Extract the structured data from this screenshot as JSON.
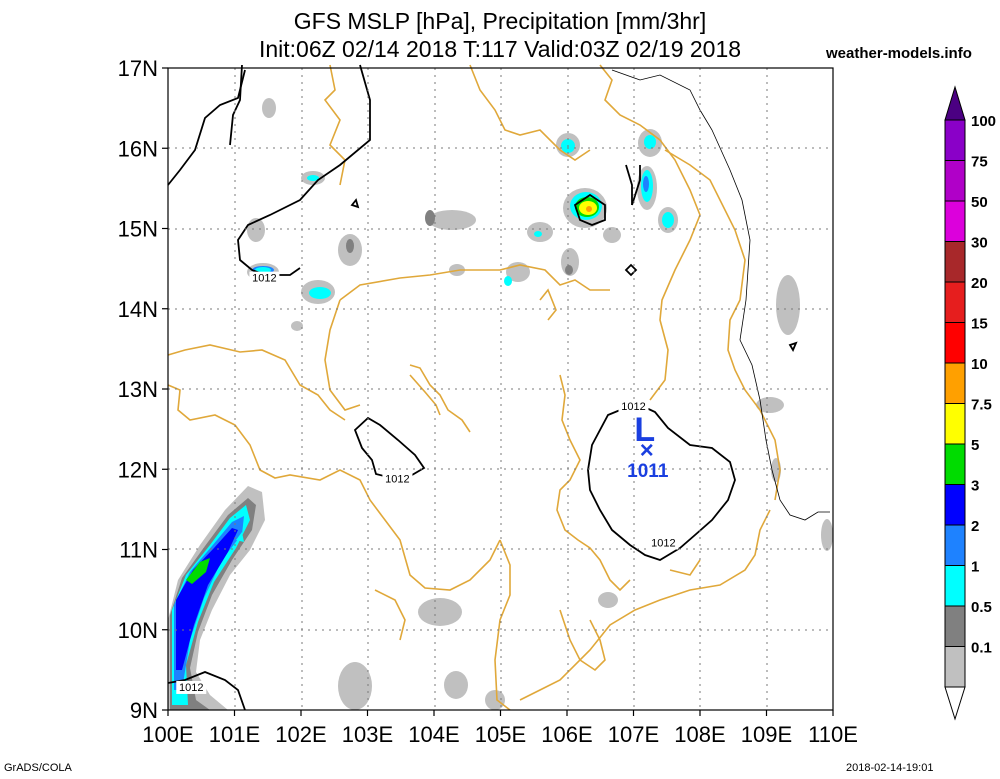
{
  "title": {
    "line1": "GFS MSLP [hPa], Precipitation [mm/3hr]",
    "line2": "Init:06Z 02/14 2018 T:117 Valid:03Z 02/19 2018"
  },
  "site": "weather-models.info",
  "footer": {
    "left": "GrADS/COLA",
    "right": "2018-02-14-19:01"
  },
  "map": {
    "lon_range": [
      100,
      110
    ],
    "lat_range": [
      9,
      17
    ],
    "lon_ticks": [
      {
        "v": 100,
        "label": "100E"
      },
      {
        "v": 101,
        "label": "101E"
      },
      {
        "v": 102,
        "label": "102E"
      },
      {
        "v": 103,
        "label": "103E"
      },
      {
        "v": 104,
        "label": "104E"
      },
      {
        "v": 105,
        "label": "105E"
      },
      {
        "v": 106,
        "label": "106E"
      },
      {
        "v": 107,
        "label": "107E"
      },
      {
        "v": 108,
        "label": "108E"
      },
      {
        "v": 109,
        "label": "109E"
      },
      {
        "v": 110,
        "label": "110E"
      }
    ],
    "lat_ticks": [
      {
        "v": 9,
        "label": "9N"
      },
      {
        "v": 10,
        "label": "10N"
      },
      {
        "v": 11,
        "label": "11N"
      },
      {
        "v": 12,
        "label": "12N"
      },
      {
        "v": 13,
        "label": "13N"
      },
      {
        "v": 14,
        "label": "14N"
      },
      {
        "v": 15,
        "label": "15N"
      },
      {
        "v": 16,
        "label": "16N"
      },
      {
        "v": 17,
        "label": "17N"
      }
    ],
    "grid": true,
    "colors": {
      "coast": "#e0a83a",
      "isobar": "#000000",
      "low": "#1a3fe0"
    }
  },
  "low": {
    "symbol": "L",
    "marker": "×",
    "pressure": "1011",
    "lon": 107.2,
    "lat": 12.25
  },
  "isobar_labels": [
    {
      "text": "1012",
      "lon": 101.45,
      "lat": 14.35
    },
    {
      "text": "1012",
      "lon": 103.45,
      "lat": 11.85
    },
    {
      "text": "1012",
      "lon": 107.0,
      "lat": 12.75
    },
    {
      "text": "1012",
      "lon": 107.45,
      "lat": 11.05
    },
    {
      "text": "1012",
      "lon": 100.35,
      "lat": 9.25
    }
  ],
  "colorbar": {
    "levels": [
      {
        "label": "100",
        "color": "#8a00c8"
      },
      {
        "label": "75",
        "color": "#b000c8"
      },
      {
        "label": "50",
        "color": "#dc00dc"
      },
      {
        "label": "30",
        "color": "#a8282a"
      },
      {
        "label": "20",
        "color": "#e61e1e"
      },
      {
        "label": "15",
        "color": "#ff0000"
      },
      {
        "label": "10",
        "color": "#ffa000"
      },
      {
        "label": "7.5",
        "color": "#ffff00"
      },
      {
        "label": "5",
        "color": "#00dc00"
      },
      {
        "label": "3",
        "color": "#0000ff"
      },
      {
        "label": "2",
        "color": "#1e82ff"
      },
      {
        "label": "1",
        "color": "#00ffff"
      },
      {
        "label": "0.5",
        "color": "#808080"
      },
      {
        "label": "0.1",
        "color": "#c0c0c0"
      }
    ],
    "top_color": "#4b0082"
  }
}
